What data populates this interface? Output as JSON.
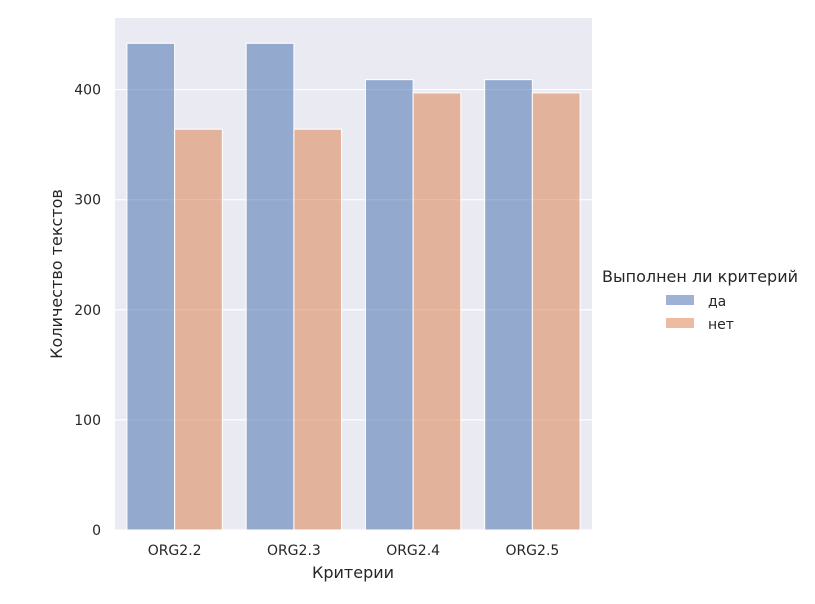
{
  "chart_data": {
    "type": "bar",
    "title": "",
    "xlabel": "Критерии",
    "ylabel": "Количество текстов",
    "categories": [
      "ORG2.2",
      "ORG2.3",
      "ORG2.4",
      "ORG2.5"
    ],
    "series": [
      {
        "name": "да",
        "values": [
          442,
          442,
          409,
          409
        ],
        "color": "#4c72b0"
      },
      {
        "name": "нет",
        "values": [
          364,
          364,
          397,
          397
        ],
        "color": "#dd8452"
      }
    ],
    "ylim": [
      0,
      465
    ],
    "yticks": [
      0,
      100,
      200,
      300,
      400
    ],
    "grid": true,
    "legend": {
      "title": "Выполнен ли критерий",
      "placement": "right"
    },
    "colors": {
      "plot_background": "#eaeaf2",
      "grid": "#ffffff",
      "text": "#262626"
    }
  }
}
